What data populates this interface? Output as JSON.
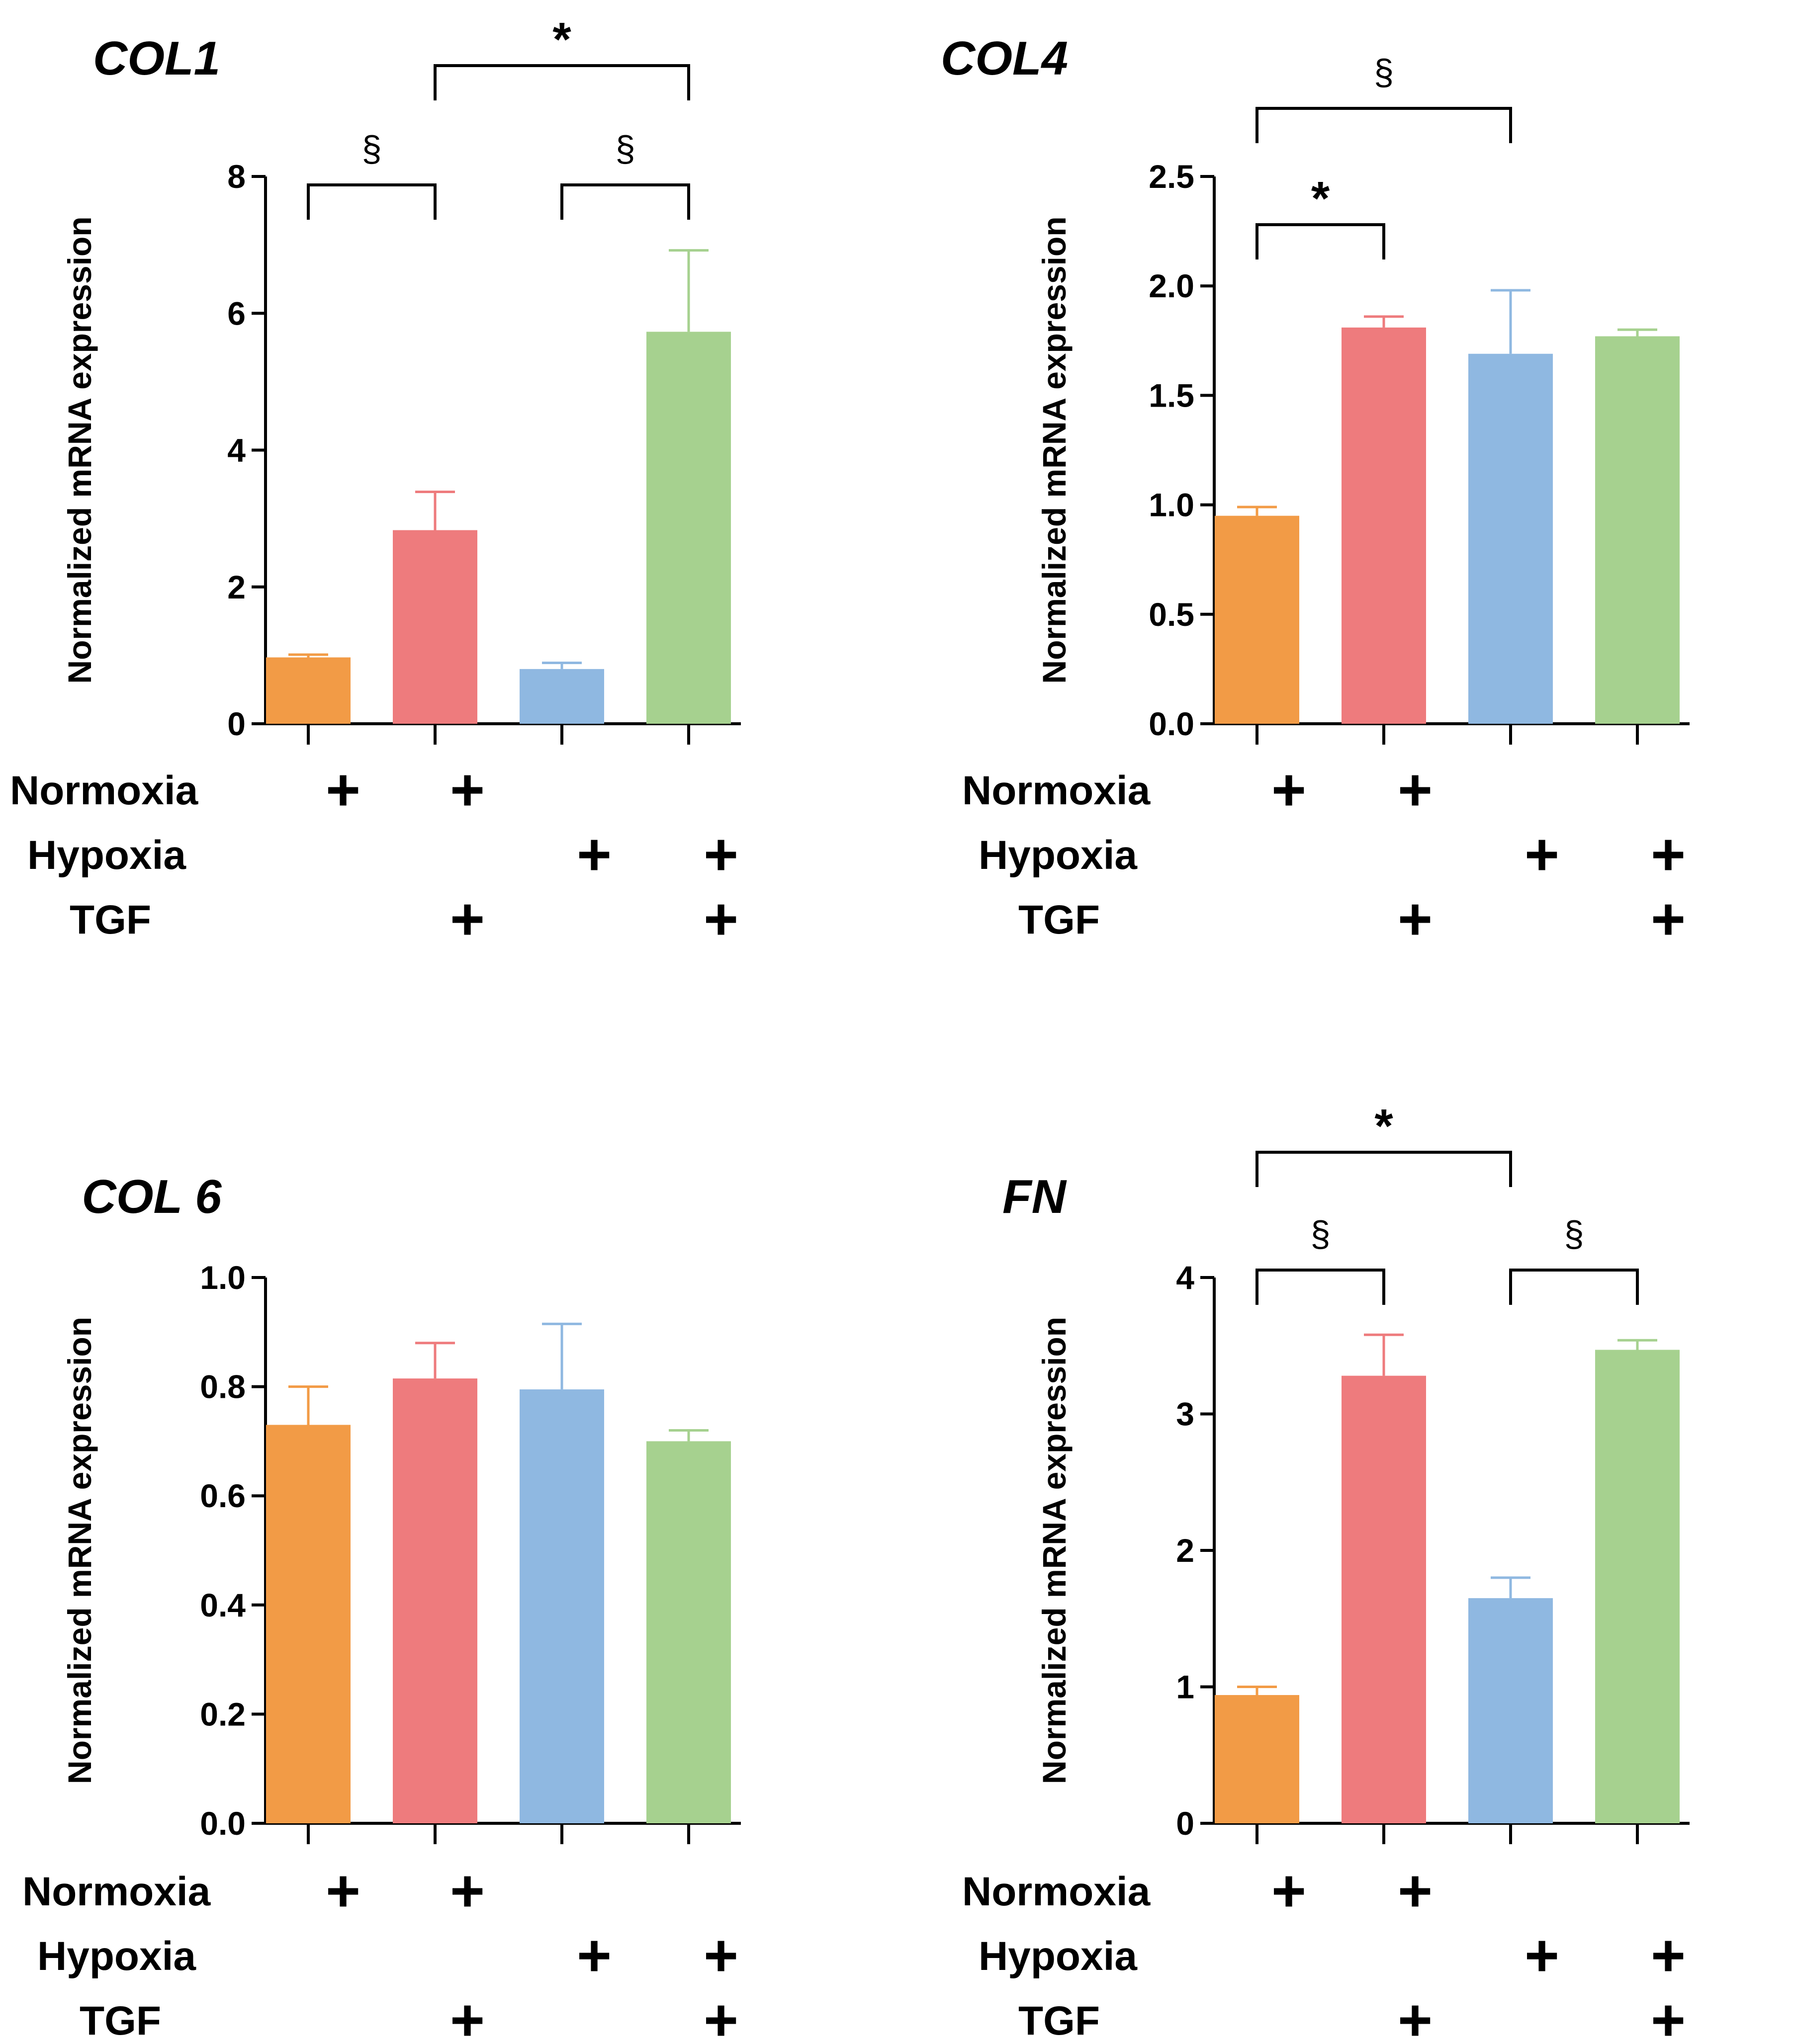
{
  "figure": {
    "ylabel": "Normalized mRNA expression",
    "plus_symbol": "+",
    "condition_labels": [
      "Normoxia",
      "Hypoxia",
      "TGF"
    ],
    "condition_matrix": [
      [
        true,
        true,
        false,
        false
      ],
      [
        false,
        false,
        true,
        true
      ],
      [
        false,
        true,
        false,
        true
      ]
    ],
    "colors": {
      "bars": [
        "#f29b46",
        "#ee7b7d",
        "#8fb8e1",
        "#a6d18f"
      ],
      "axis": "#000000"
    }
  },
  "chart_data": [
    {
      "type": "bar",
      "title": "COL1",
      "ylabel": "Normalized mRNA expression",
      "xlabel": "",
      "categories": [
        "Normoxia",
        "Normoxia + TGF",
        "Hypoxia",
        "Hypoxia + TGF"
      ],
      "values": [
        0.97,
        2.83,
        0.8,
        5.73
      ],
      "errors": [
        0.04,
        0.56,
        0.09,
        1.19
      ],
      "ylim": [
        0,
        8
      ],
      "yticks": [
        0,
        2,
        4,
        6,
        8
      ],
      "ytick_labels": [
        "0",
        "2",
        "4",
        "6",
        "8"
      ],
      "significance": [
        {
          "from": 0,
          "to": 1,
          "label": "§",
          "level": 0
        },
        {
          "from": 2,
          "to": 3,
          "label": "§",
          "level": 0
        },
        {
          "from": 1,
          "to": 3,
          "label": "*",
          "level": 1
        }
      ]
    },
    {
      "type": "bar",
      "title": "COL4",
      "ylabel": "Normalized mRNA expression",
      "xlabel": "",
      "categories": [
        "Normoxia",
        "Normoxia + TGF",
        "Hypoxia",
        "Hypoxia + TGF"
      ],
      "values": [
        0.95,
        1.81,
        1.69,
        1.77
      ],
      "errors": [
        0.04,
        0.05,
        0.29,
        0.03
      ],
      "ylim": [
        0,
        2.5
      ],
      "yticks": [
        0,
        0.5,
        1,
        1.5,
        2,
        2.5
      ],
      "ytick_labels": [
        "0.0",
        "0.5",
        "1.0",
        "1.5",
        "2.0",
        "2.5"
      ],
      "significance": [
        {
          "from": 0,
          "to": 1,
          "label": "*",
          "level": 0
        },
        {
          "from": 0,
          "to": 2,
          "label": "§",
          "level": 1
        }
      ]
    },
    {
      "type": "bar",
      "title": "COL 6",
      "ylabel": "Normalized mRNA expression",
      "xlabel": "",
      "categories": [
        "Normoxia",
        "Normoxia + TGF",
        "Hypoxia",
        "Hypoxia + TGF"
      ],
      "values": [
        0.73,
        0.815,
        0.795,
        0.7
      ],
      "errors": [
        0.07,
        0.065,
        0.12,
        0.02
      ],
      "ylim": [
        0,
        1
      ],
      "yticks": [
        0,
        0.2,
        0.4,
        0.6,
        0.8,
        1
      ],
      "ytick_labels": [
        "0.0",
        "0.2",
        "0.4",
        "0.6",
        "0.8",
        "1.0"
      ],
      "significance": []
    },
    {
      "type": "bar",
      "title": "FN",
      "ylabel": "Normalized mRNA expression",
      "xlabel": "",
      "categories": [
        "Normoxia",
        "Normoxia + TGF",
        "Hypoxia",
        "Hypoxia + TGF"
      ],
      "values": [
        0.94,
        3.28,
        1.65,
        3.47
      ],
      "errors": [
        0.06,
        0.3,
        0.15,
        0.07
      ],
      "ylim": [
        0,
        4
      ],
      "yticks": [
        0,
        1,
        2,
        3,
        4
      ],
      "ytick_labels": [
        "0",
        "1",
        "2",
        "3",
        "4"
      ],
      "significance": [
        {
          "from": 0,
          "to": 1,
          "label": "§",
          "level": 0
        },
        {
          "from": 2,
          "to": 3,
          "label": "§",
          "level": 0
        },
        {
          "from": 0,
          "to": 2,
          "label": "*",
          "level": 1
        }
      ]
    }
  ]
}
